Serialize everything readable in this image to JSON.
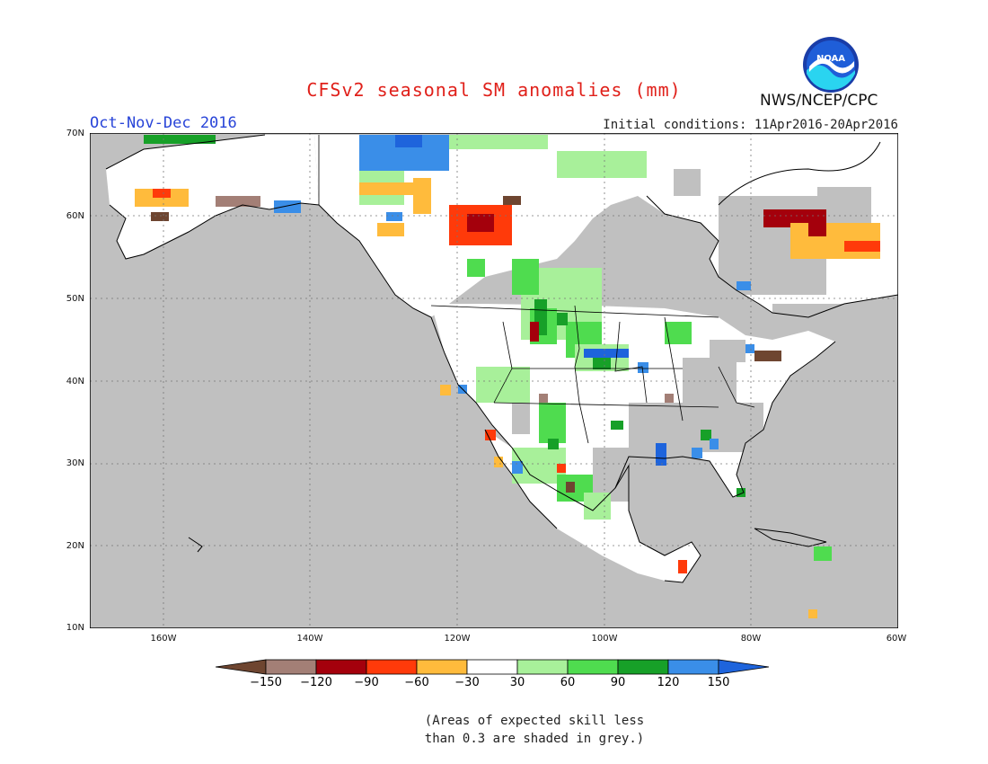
{
  "title": "CFSv2 seasonal SM anomalies (mm)",
  "season": "Oct-Nov-Dec 2016",
  "initial_conditions": "Initial conditions: 11Apr2016-20Apr2016",
  "agency": "NWS/NCEP/CPC",
  "logo_text": "NOAA",
  "lat_labels": [
    "70N",
    "60N",
    "50N",
    "40N",
    "30N",
    "20N",
    "10N"
  ],
  "lon_labels": [
    "160W",
    "140W",
    "120W",
    "100W",
    "80W",
    "60W"
  ],
  "colorbar": {
    "labels": [
      "−150",
      "−120",
      "−90",
      "−60",
      "−30",
      "30",
      "60",
      "90",
      "120",
      "150"
    ],
    "colors": [
      "#6e4530",
      "#a37f76",
      "#a4000c",
      "#ff3a0a",
      "#ffbb3c",
      "#ffffff",
      "#a8f09a",
      "#4fdc4f",
      "#17a028",
      "#3a8ee8",
      "#1e64dc"
    ]
  },
  "note_line1": "(Areas of expected skill less",
  "note_line2": "than 0.3 are shaded in grey.)",
  "colors": {
    "grey": "#c0c0c0",
    "ocean": "#c0c0c0",
    "land_white": "#ffffff"
  }
}
